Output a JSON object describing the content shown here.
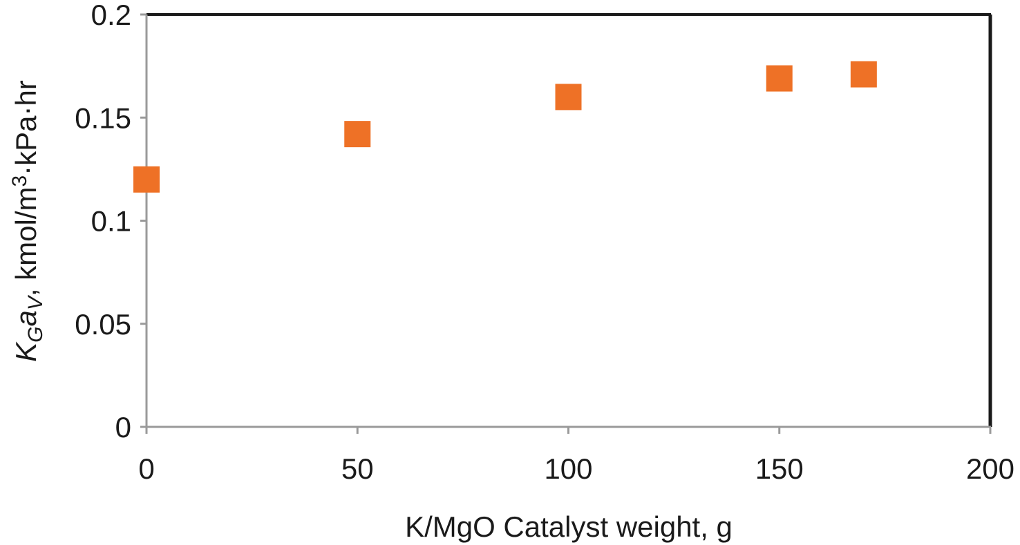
{
  "chart_data": {
    "type": "scatter",
    "title": "",
    "xlabel": "K/MgO Catalyst weight, g",
    "ylabel": {
      "k": "K",
      "k_sub": "G",
      "a": "a",
      "a_sub": "V",
      "units_pre": ", kmol/m",
      "units_sup": "3",
      "units_post": "·kPa·hr"
    },
    "xlim": [
      0,
      200
    ],
    "ylim": [
      0,
      0.2
    ],
    "xticks": [
      "0",
      "50",
      "100",
      "150",
      "200"
    ],
    "yticks": [
      "0",
      "0.05",
      "0.1",
      "0.15",
      "0.2"
    ],
    "grid": false,
    "legend": "none",
    "marker": "square",
    "marker_color": "#EE7126",
    "series": [
      {
        "x": [
          0,
          50,
          100,
          150,
          170
        ],
        "y": [
          0.12,
          0.142,
          0.16,
          0.169,
          0.171
        ]
      }
    ]
  }
}
